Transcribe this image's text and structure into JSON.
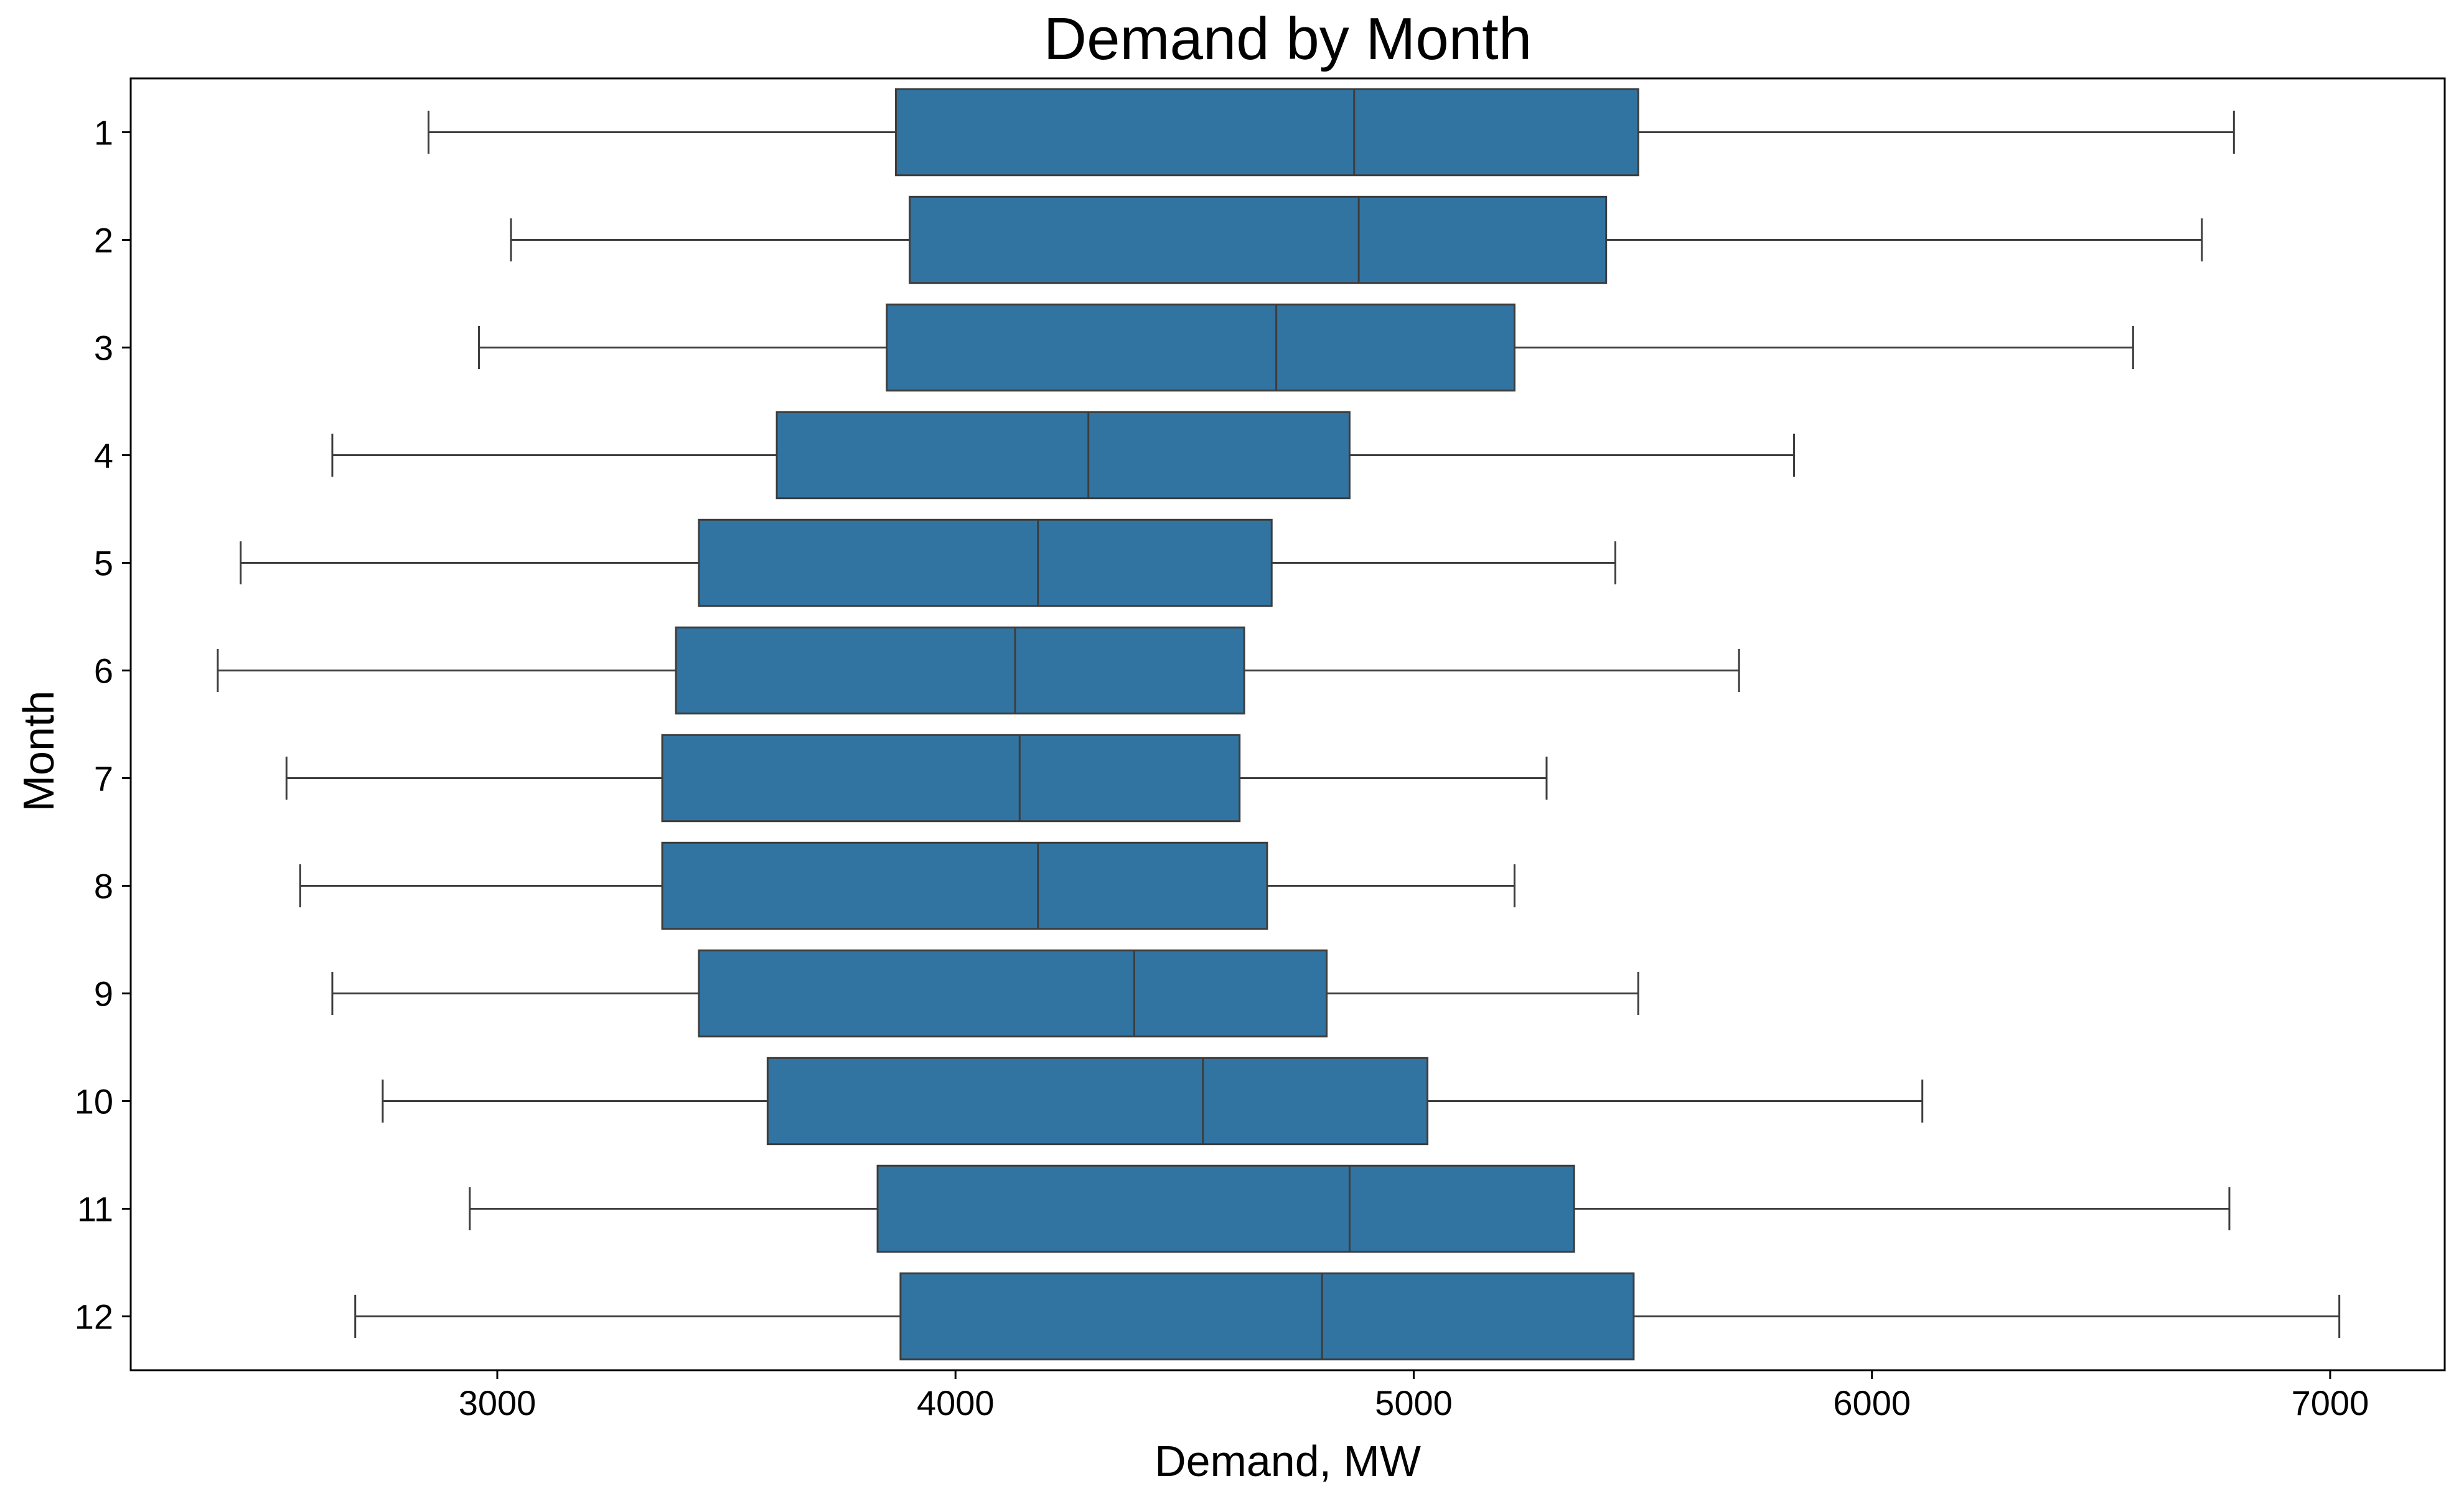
{
  "chart_data": {
    "type": "boxplot",
    "orientation": "horizontal",
    "title": "Demand by Month",
    "xlabel": "Demand, MW",
    "ylabel": "Month",
    "xlim": [
      2200,
      7250
    ],
    "xticks": [
      3000,
      4000,
      5000,
      6000,
      7000
    ],
    "box_color": "#3274A1",
    "edge_color": "#3D3D3D",
    "grid": false,
    "categories": [
      "1",
      "2",
      "3",
      "4",
      "5",
      "6",
      "7",
      "8",
      "9",
      "10",
      "11",
      "12"
    ],
    "boxes": [
      {
        "month": "1",
        "whisker_low": 2850,
        "q1": 3870,
        "median": 4870,
        "q3": 5490,
        "whisker_high": 6790
      },
      {
        "month": "2",
        "whisker_low": 3030,
        "q1": 3900,
        "median": 4880,
        "q3": 5420,
        "whisker_high": 6720
      },
      {
        "month": "3",
        "whisker_low": 2960,
        "q1": 3850,
        "median": 4700,
        "q3": 5220,
        "whisker_high": 6570
      },
      {
        "month": "4",
        "whisker_low": 2640,
        "q1": 3610,
        "median": 4290,
        "q3": 4860,
        "whisker_high": 5830
      },
      {
        "month": "5",
        "whisker_low": 2440,
        "q1": 3440,
        "median": 4180,
        "q3": 4690,
        "whisker_high": 5440
      },
      {
        "month": "6",
        "whisker_low": 2390,
        "q1": 3390,
        "median": 4130,
        "q3": 4630,
        "whisker_high": 5710
      },
      {
        "month": "7",
        "whisker_low": 2540,
        "q1": 3360,
        "median": 4140,
        "q3": 4620,
        "whisker_high": 5290
      },
      {
        "month": "8",
        "whisker_low": 2570,
        "q1": 3360,
        "median": 4180,
        "q3": 4680,
        "whisker_high": 5220
      },
      {
        "month": "9",
        "whisker_low": 2640,
        "q1": 3440,
        "median": 4390,
        "q3": 4810,
        "whisker_high": 5490
      },
      {
        "month": "10",
        "whisker_low": 2750,
        "q1": 3590,
        "median": 4540,
        "q3": 5030,
        "whisker_high": 6110
      },
      {
        "month": "11",
        "whisker_low": 2940,
        "q1": 3830,
        "median": 4860,
        "q3": 5350,
        "whisker_high": 6780
      },
      {
        "month": "12",
        "whisker_low": 2690,
        "q1": 3880,
        "median": 4800,
        "q3": 5480,
        "whisker_high": 7020
      }
    ]
  }
}
